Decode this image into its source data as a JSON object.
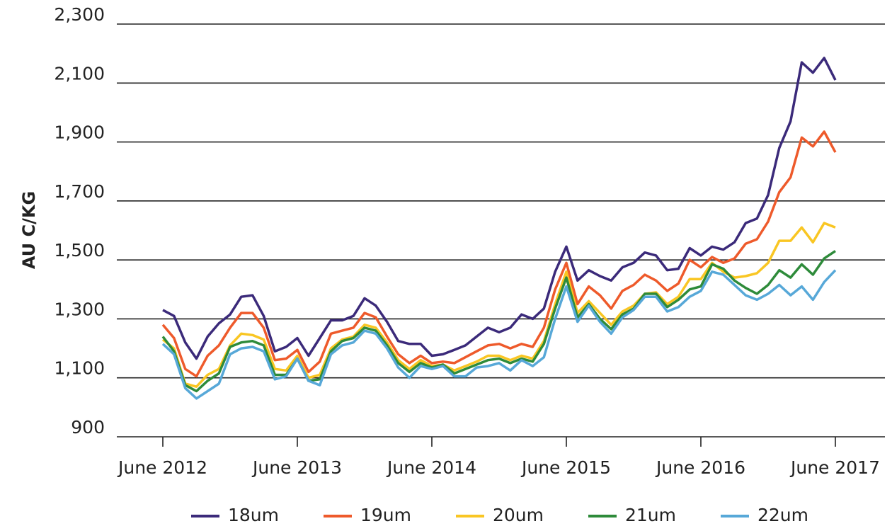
{
  "chart_data": {
    "type": "line",
    "ylabel": "AU C/KG",
    "categories": [
      "June 2012",
      null,
      null,
      null,
      null,
      null,
      null,
      null,
      null,
      null,
      null,
      null,
      "June 2013",
      null,
      null,
      null,
      null,
      null,
      null,
      null,
      null,
      null,
      null,
      null,
      "June 2014",
      null,
      null,
      null,
      null,
      null,
      null,
      null,
      null,
      null,
      null,
      null,
      "June 2015",
      null,
      null,
      null,
      null,
      null,
      null,
      null,
      null,
      null,
      null,
      null,
      "June 2016",
      null,
      null,
      null,
      null,
      null,
      null,
      null,
      null,
      null,
      null,
      null,
      "June 2017"
    ],
    "series": [
      {
        "name": "18um",
        "color": "#3b2a7a",
        "values": [
          1330,
          1310,
          1220,
          1165,
          1240,
          1285,
          1315,
          1375,
          1380,
          1310,
          1190,
          1205,
          1235,
          1175,
          1235,
          1295,
          1295,
          1310,
          1370,
          1345,
          1290,
          1225,
          1215,
          1215,
          1175,
          1180,
          1195,
          1210,
          1240,
          1270,
          1255,
          1270,
          1315,
          1300,
          1335,
          1460,
          1545,
          1430,
          1465,
          1445,
          1430,
          1475,
          1490,
          1525,
          1515,
          1465,
          1470,
          1540,
          1515,
          1545,
          1535,
          1560,
          1625,
          1640,
          1720,
          1880,
          1970,
          2170,
          2135,
          2185,
          2110
        ]
      },
      {
        "name": "19um",
        "color": "#ee5a2b",
        "values": [
          1280,
          1235,
          1130,
          1105,
          1175,
          1210,
          1270,
          1320,
          1320,
          1270,
          1160,
          1165,
          1195,
          1120,
          1155,
          1250,
          1260,
          1270,
          1320,
          1305,
          1240,
          1180,
          1150,
          1175,
          1150,
          1155,
          1150,
          1170,
          1190,
          1210,
          1215,
          1200,
          1215,
          1205,
          1270,
          1400,
          1490,
          1350,
          1410,
          1380,
          1335,
          1395,
          1415,
          1450,
          1430,
          1395,
          1420,
          1500,
          1475,
          1510,
          1490,
          1505,
          1555,
          1570,
          1630,
          1730,
          1780,
          1915,
          1885,
          1935,
          1865
        ]
      },
      {
        "name": "20um",
        "color": "#f9c623",
        "values": [
          1230,
          1200,
          1080,
          1070,
          1110,
          1130,
          1210,
          1250,
          1245,
          1230,
          1130,
          1125,
          1175,
          1100,
          1110,
          1200,
          1230,
          1240,
          1280,
          1270,
          1220,
          1160,
          1130,
          1160,
          1140,
          1145,
          1125,
          1140,
          1155,
          1175,
          1175,
          1160,
          1175,
          1165,
          1225,
          1350,
          1460,
          1320,
          1360,
          1320,
          1280,
          1325,
          1345,
          1385,
          1390,
          1350,
          1375,
          1435,
          1435,
          1490,
          1460,
          1440,
          1445,
          1455,
          1490,
          1565,
          1565,
          1610,
          1560,
          1625,
          1610
        ]
      },
      {
        "name": "21um",
        "color": "#2e8b3a",
        "values": [
          1240,
          1190,
          1075,
          1055,
          1090,
          1115,
          1205,
          1220,
          1225,
          1210,
          1110,
          1110,
          1165,
          1090,
          1095,
          1190,
          1225,
          1235,
          1270,
          1260,
          1210,
          1150,
          1120,
          1150,
          1135,
          1145,
          1115,
          1130,
          1145,
          1160,
          1165,
          1150,
          1165,
          1155,
          1215,
          1335,
          1440,
          1305,
          1350,
          1300,
          1265,
          1315,
          1335,
          1385,
          1385,
          1340,
          1365,
          1400,
          1410,
          1485,
          1470,
          1430,
          1405,
          1385,
          1415,
          1465,
          1440,
          1485,
          1450,
          1505,
          1530
        ]
      },
      {
        "name": "22um",
        "color": "#57a8d8",
        "values": [
          1215,
          1180,
          1065,
          1030,
          1055,
          1080,
          1180,
          1200,
          1205,
          1190,
          1095,
          1105,
          1165,
          1090,
          1075,
          1180,
          1210,
          1220,
          1260,
          1250,
          1200,
          1135,
          1100,
          1140,
          1130,
          1140,
          1105,
          1105,
          1135,
          1140,
          1150,
          1125,
          1160,
          1140,
          1170,
          1300,
          1410,
          1290,
          1345,
          1290,
          1250,
          1305,
          1330,
          1375,
          1375,
          1325,
          1340,
          1375,
          1395,
          1460,
          1450,
          1415,
          1380,
          1365,
          1385,
          1415,
          1380,
          1410,
          1365,
          1425,
          1465
        ]
      }
    ],
    "ylim": [
      900,
      2300
    ],
    "yticks": [
      {
        "value": 900,
        "label": "900"
      },
      {
        "value": 1100,
        "label": "1,100"
      },
      {
        "value": 1300,
        "label": "1,300"
      },
      {
        "value": 1500,
        "label": "1,500"
      },
      {
        "value": 1700,
        "label": "1,700"
      },
      {
        "value": 1900,
        "label": "1,900"
      },
      {
        "value": 2100,
        "label": "2,100"
      },
      {
        "value": 2300,
        "label": "2,300"
      }
    ],
    "grid": true,
    "legend": "bottom"
  }
}
